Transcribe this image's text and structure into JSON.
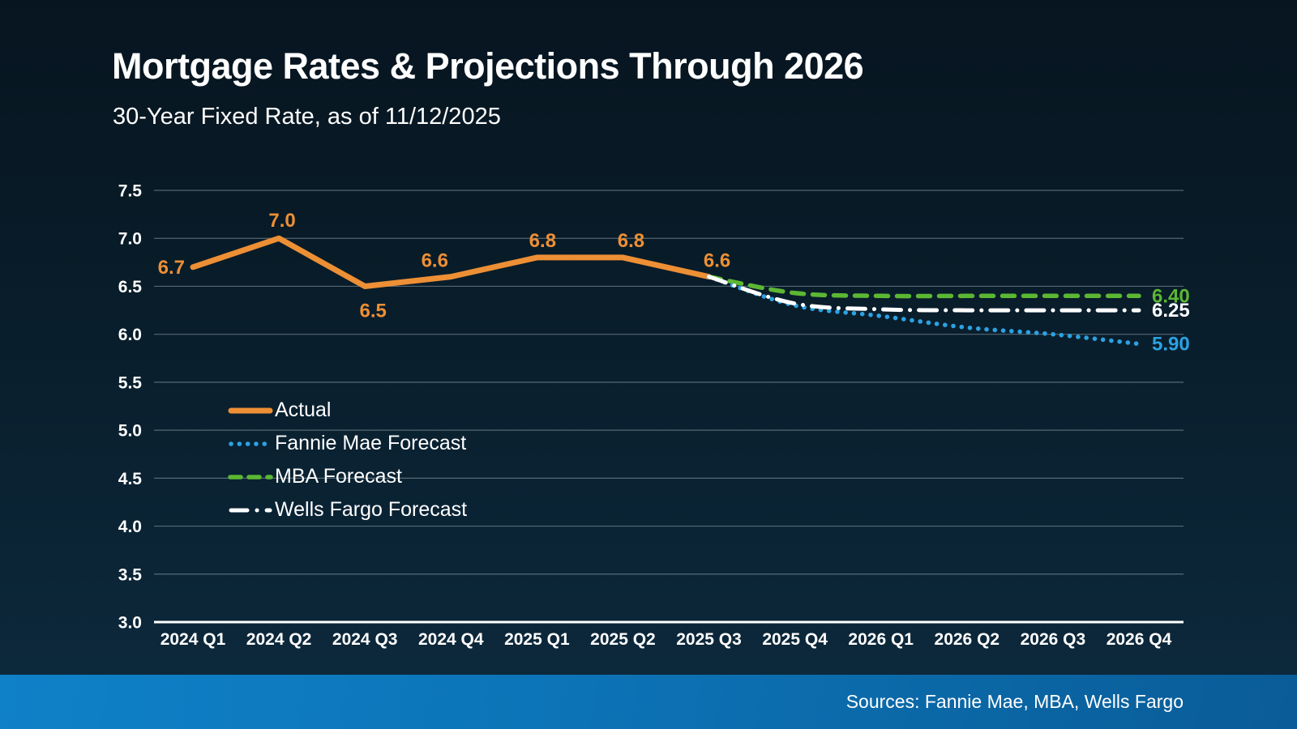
{
  "chart_data": {
    "type": "line",
    "title": "Mortgage Rates & Projections Through 2026",
    "subtitle": "30-Year Fixed Rate, as of 11/12/2025",
    "categories": [
      "2024 Q1",
      "2024 Q2",
      "2024 Q3",
      "2024 Q4",
      "2025 Q1",
      "2025 Q2",
      "2025 Q3",
      "2025 Q4",
      "2026 Q1",
      "2026 Q2",
      "2026 Q3",
      "2026 Q4"
    ],
    "ylim": [
      3.0,
      7.5
    ],
    "ytick_step": 0.5,
    "ytick_labels": [
      "7.5",
      "7.0",
      "6.5",
      "6.0",
      "5.5",
      "5.0",
      "4.5",
      "4.0",
      "3.5",
      "3.0"
    ],
    "grid": true,
    "legend_position": "inside-left",
    "series": [
      {
        "name": "Actual",
        "color": "#ED8F35",
        "style": "solid",
        "values": [
          6.7,
          7.0,
          6.5,
          6.6,
          6.8,
          6.8,
          6.6,
          null,
          null,
          null,
          null,
          null
        ],
        "point_labels": [
          "6.7",
          "7.0",
          "6.5",
          "6.6",
          "6.8",
          "6.8",
          "6.6"
        ],
        "label_offsets": [
          {
            "dx": -10,
            "dy": 8,
            "anchor": "end"
          },
          {
            "dx": 4,
            "dy": -14,
            "anchor": "middle"
          },
          {
            "dx": 10,
            "dy": 38,
            "anchor": "middle"
          },
          {
            "dx": -20,
            "dy": -12,
            "anchor": "middle"
          },
          {
            "dx": 7,
            "dy": -13,
            "anchor": "middle"
          },
          {
            "dx": 10,
            "dy": -13,
            "anchor": "middle"
          },
          {
            "dx": 10,
            "dy": -12,
            "anchor": "middle"
          }
        ]
      },
      {
        "name": "Fannie Mae Forecast",
        "color": "#2BA2E2",
        "style": "dotted",
        "values": [
          null,
          null,
          null,
          null,
          null,
          null,
          6.6,
          6.3,
          6.19,
          6.07,
          6.0,
          5.9
        ],
        "end_label": "5.90"
      },
      {
        "name": "MBA Forecast",
        "color": "#5CB733",
        "style": "dashed",
        "values": [
          null,
          null,
          null,
          null,
          null,
          null,
          6.6,
          6.43,
          6.4,
          6.4,
          6.4,
          6.4
        ],
        "end_label": "6.40"
      },
      {
        "name": "Wells Fargo Forecast",
        "color": "#FFFFFF",
        "style": "dashdot",
        "values": [
          null,
          null,
          null,
          null,
          null,
          null,
          6.6,
          6.32,
          6.26,
          6.25,
          6.25,
          6.25
        ],
        "end_label": "6.25"
      }
    ]
  },
  "footer": {
    "sources": "Sources: Fannie Mae, MBA, Wells Fargo"
  }
}
